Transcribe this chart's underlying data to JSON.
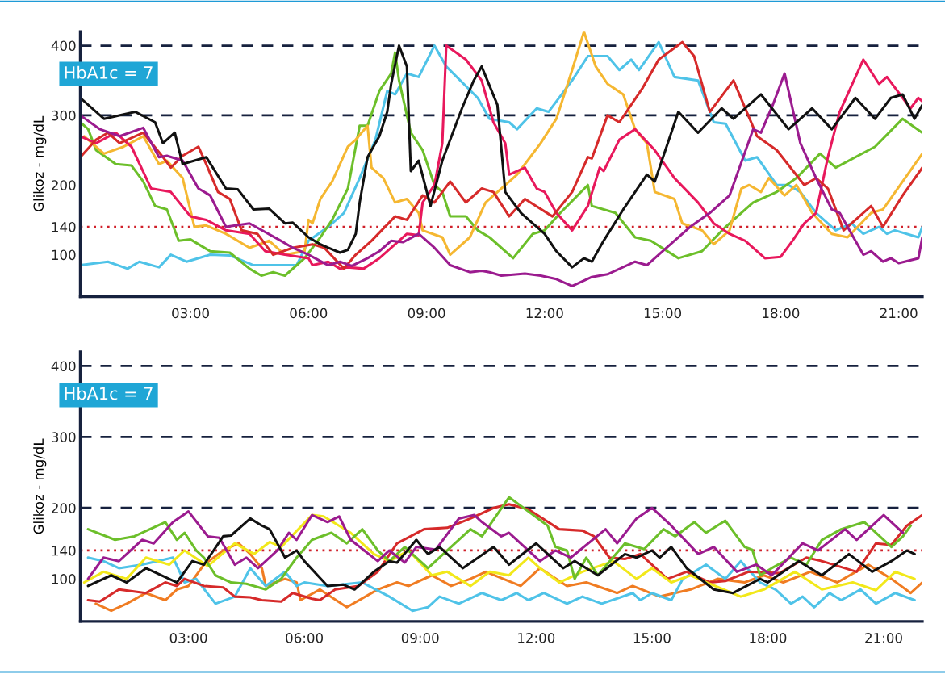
{
  "chart_data": [
    {
      "type": "line",
      "ylabel": "Glikoz - mg/dL",
      "annotations": [
        "HbA1c = 7"
      ],
      "xlim": [
        0.2,
        21.6
      ],
      "xticks": [
        {
          "value": 3,
          "label": "03:00"
        },
        {
          "value": 6,
          "label": "06:00"
        },
        {
          "value": 9,
          "label": "09:00"
        },
        {
          "value": 12,
          "label": "12:00"
        },
        {
          "value": 15,
          "label": "15:00"
        },
        {
          "value": 18,
          "label": "18:00"
        },
        {
          "value": 21,
          "label": "21:00"
        }
      ],
      "ylim": [
        40,
        420
      ],
      "yticks": [
        100,
        140,
        200,
        300,
        400
      ],
      "grid": false,
      "legend": false,
      "marker": "none",
      "line_style": "solid",
      "ref_lines": [
        {
          "axis": "y",
          "value": 400,
          "color": "#16213e",
          "line_style": "dashed"
        },
        {
          "axis": "y",
          "value": 300,
          "color": "#16213e",
          "line_style": "dashed"
        },
        {
          "axis": "y",
          "value": 140,
          "color": "#d0202a",
          "line_style": "dotted"
        }
      ],
      "series": [
        {
          "color": "#4fc3e8",
          "x": [
            0.2,
            0.9,
            1.4,
            1.7,
            2.2,
            2.5,
            2.9,
            3.5,
            4.0,
            4.6,
            5.7,
            6.0,
            6.5,
            6.9,
            7.3,
            7.7,
            8.0,
            8.2,
            8.5,
            8.8,
            9.2,
            9.5,
            10.3,
            10.6,
            11.1,
            11.3,
            11.8,
            12.1,
            12.7,
            13.1,
            13.6,
            13.9,
            14.2,
            14.4,
            14.9,
            15.3,
            15.9,
            16.3,
            16.6,
            17.1,
            17.4,
            17.9,
            18.2,
            18.5,
            18.9,
            19.4,
            19.8,
            20.1,
            20.5,
            20.7,
            20.9,
            21.5,
            21.6
          ],
          "values": [
            85,
            90,
            80,
            90,
            82,
            100,
            90,
            100,
            99,
            85,
            85,
            120,
            140,
            160,
            210,
            265,
            335,
            330,
            360,
            355,
            400,
            370,
            325,
            295,
            290,
            280,
            310,
            305,
            350,
            385,
            385,
            365,
            380,
            365,
            405,
            355,
            350,
            290,
            288,
            235,
            240,
            200,
            200,
            190,
            160,
            135,
            145,
            130,
            140,
            130,
            135,
            125,
            140
          ]
        },
        {
          "color": "#6cbf2a",
          "x": [
            0.2,
            0.4,
            0.6,
            1.1,
            1.5,
            1.8,
            2.1,
            2.4,
            2.7,
            3.0,
            3.5,
            4.0,
            4.5,
            4.8,
            5.1,
            5.4,
            5.9,
            6.3,
            6.6,
            7.0,
            7.3,
            7.5,
            7.8,
            8.1,
            8.2,
            8.3,
            8.6,
            8.9,
            9.2,
            9.4,
            9.6,
            10.0,
            10.3,
            10.6,
            11.2,
            11.7,
            12.0,
            12.4,
            13.1,
            13.2,
            13.8,
            14.3,
            14.7,
            15.4,
            16.0,
            16.6,
            17.3,
            17.9,
            18.4,
            19.0,
            19.4,
            20.4,
            21.1,
            21.6
          ],
          "values": [
            290,
            280,
            250,
            230,
            228,
            205,
            170,
            165,
            120,
            122,
            105,
            103,
            80,
            70,
            75,
            70,
            95,
            125,
            150,
            195,
            285,
            285,
            335,
            360,
            390,
            350,
            275,
            250,
            200,
            190,
            155,
            155,
            135,
            125,
            95,
            130,
            135,
            160,
            200,
            170,
            160,
            125,
            120,
            95,
            105,
            140,
            175,
            190,
            210,
            245,
            225,
            255,
            295,
            275
          ]
        },
        {
          "color": "#f5b731",
          "x": [
            0.3,
            0.8,
            1.3,
            1.8,
            2.2,
            2.4,
            2.8,
            3.1,
            3.4,
            3.9,
            4.5,
            5.0,
            5.4,
            5.9,
            6.0,
            6.1,
            6.3,
            6.6,
            7.0,
            7.2,
            7.5,
            7.6,
            7.9,
            8.2,
            8.5,
            8.8,
            8.9,
            9.4,
            9.6,
            10.1,
            10.5,
            11.3,
            11.9,
            12.3,
            12.7,
            13.0,
            13.3,
            13.6,
            14.0,
            14.3,
            14.6,
            14.8,
            15.3,
            15.5,
            16.0,
            16.3,
            16.7,
            17.0,
            17.2,
            17.5,
            17.7,
            18.1,
            18.4,
            18.8,
            19.3,
            19.7,
            20.3,
            20.6,
            21.1,
            21.6
          ],
          "values": [
            270,
            245,
            255,
            270,
            230,
            235,
            210,
            140,
            142,
            130,
            110,
            120,
            100,
            105,
            150,
            145,
            180,
            205,
            255,
            265,
            285,
            225,
            210,
            175,
            180,
            160,
            135,
            125,
            100,
            125,
            175,
            215,
            260,
            295,
            365,
            420,
            370,
            345,
            330,
            280,
            260,
            190,
            180,
            145,
            135,
            115,
            135,
            195,
            200,
            190,
            210,
            185,
            200,
            160,
            130,
            125,
            160,
            165,
            205,
            245
          ]
        },
        {
          "color": "#e8185c",
          "x": [
            0.2,
            0.6,
            1.1,
            1.5,
            2.0,
            2.5,
            3.0,
            3.4,
            3.9,
            4.5,
            4.9,
            5.4,
            6.0,
            6.1,
            6.5,
            6.8,
            7.0,
            7.4,
            7.8,
            8.2,
            8.5,
            8.8,
            8.9,
            9.2,
            9.4,
            9.5,
            10.0,
            10.4,
            10.7,
            11.0,
            11.1,
            11.5,
            11.8,
            12.0,
            12.3,
            12.7,
            13.1,
            13.4,
            13.5,
            13.9,
            14.3,
            14.8,
            15.3,
            15.9,
            16.3,
            16.7,
            17.1,
            17.6,
            18.0,
            18.3,
            18.6,
            18.9,
            19.2,
            19.5,
            20.1,
            20.5,
            20.7,
            21.3,
            21.5,
            21.6
          ],
          "values": [
            270,
            260,
            275,
            255,
            195,
            190,
            155,
            150,
            135,
            130,
            105,
            100,
            95,
            85,
            90,
            80,
            82,
            80,
            95,
            115,
            130,
            128,
            175,
            200,
            260,
            400,
            380,
            350,
            290,
            260,
            215,
            225,
            195,
            190,
            160,
            135,
            170,
            225,
            220,
            265,
            280,
            250,
            210,
            175,
            145,
            130,
            120,
            95,
            97,
            120,
            145,
            160,
            240,
            305,
            380,
            345,
            355,
            310,
            325,
            320
          ]
        },
        {
          "color": "#d62a2a",
          "x": [
            0.2,
            0.6,
            0.9,
            1.2,
            1.8,
            2.3,
            2.5,
            2.8,
            3.2,
            3.4,
            3.7,
            4.0,
            4.3,
            4.7,
            5.1,
            5.6,
            6.1,
            6.4,
            6.9,
            7.2,
            7.6,
            8.2,
            8.5,
            8.9,
            9.2,
            9.6,
            10.0,
            10.4,
            10.7,
            11.1,
            11.5,
            12.2,
            12.7,
            13.1,
            13.2,
            13.6,
            13.9,
            14.5,
            14.9,
            15.5,
            15.8,
            16.2,
            16.8,
            17.4,
            17.9,
            18.6,
            18.9,
            19.2,
            19.6,
            20.3,
            20.6,
            21.1,
            21.6
          ],
          "values": [
            240,
            265,
            275,
            260,
            275,
            240,
            225,
            242,
            255,
            230,
            190,
            180,
            135,
            130,
            100,
            110,
            115,
            110,
            80,
            100,
            120,
            155,
            150,
            185,
            175,
            205,
            175,
            195,
            190,
            155,
            180,
            155,
            190,
            240,
            238,
            300,
            290,
            340,
            380,
            405,
            385,
            305,
            350,
            270,
            250,
            200,
            210,
            195,
            135,
            170,
            140,
            185,
            225
          ]
        },
        {
          "color": "#9b1b8f",
          "x": [
            0.2,
            0.7,
            1.2,
            1.8,
            2.2,
            2.4,
            2.8,
            3.2,
            3.5,
            3.9,
            4.5,
            5.3,
            5.6,
            6.0,
            6.5,
            6.8,
            7.1,
            7.5,
            7.8,
            8.1,
            8.4,
            8.8,
            9.2,
            9.6,
            10.1,
            10.4,
            10.6,
            10.9,
            11.5,
            11.9,
            12.3,
            12.7,
            13.2,
            13.6,
            14.3,
            14.6,
            15.1,
            15.7,
            16.2,
            16.7,
            17.3,
            17.5,
            17.8,
            18.1,
            18.5,
            18.9,
            19.3,
            19.5,
            20.1,
            20.3,
            20.6,
            20.8,
            21.0,
            21.5,
            21.6
          ],
          "values": [
            300,
            280,
            270,
            282,
            240,
            242,
            235,
            195,
            185,
            140,
            145,
            120,
            110,
            100,
            85,
            90,
            84,
            95,
            105,
            120,
            118,
            130,
            110,
            85,
            75,
            77,
            75,
            70,
            73,
            70,
            65,
            55,
            68,
            72,
            90,
            85,
            110,
            140,
            160,
            185,
            280,
            275,
            315,
            360,
            260,
            210,
            165,
            160,
            100,
            105,
            90,
            95,
            88,
            95,
            125
          ]
        },
        {
          "color": "#111111",
          "x": [
            0.2,
            0.8,
            1.6,
            2.1,
            2.3,
            2.6,
            2.8,
            3.4,
            3.9,
            4.2,
            4.6,
            5.0,
            5.4,
            5.6,
            6.0,
            6.3,
            6.5,
            6.8,
            7.0,
            7.2,
            7.3,
            7.5,
            7.8,
            8.0,
            8.1,
            8.3,
            8.5,
            8.6,
            8.8,
            9.1,
            9.4,
            9.9,
            10.2,
            10.4,
            10.8,
            11.0,
            11.4,
            12.0,
            12.3,
            12.7,
            13.0,
            13.2,
            13.5,
            14.0,
            14.6,
            14.8,
            15.4,
            15.9,
            16.5,
            16.8,
            17.5,
            18.2,
            18.8,
            19.3,
            19.9,
            20.4,
            20.8,
            21.1,
            21.4,
            21.6
          ],
          "values": [
            325,
            295,
            305,
            290,
            260,
            275,
            230,
            240,
            195,
            194,
            165,
            166,
            145,
            146,
            125,
            115,
            110,
            103,
            107,
            130,
            175,
            240,
            270,
            305,
            345,
            400,
            370,
            220,
            235,
            170,
            235,
            310,
            350,
            370,
            315,
            190,
            160,
            130,
            105,
            82,
            95,
            90,
            120,
            165,
            215,
            205,
            305,
            275,
            310,
            295,
            330,
            280,
            310,
            280,
            325,
            295,
            325,
            330,
            295,
            315
          ]
        }
      ]
    },
    {
      "type": "line",
      "ylabel": "Glikoz - mg/dL",
      "annotations": [
        "HbA1c = 7"
      ],
      "xlim": [
        0.2,
        22.0
      ],
      "xticks": [
        {
          "value": 3,
          "label": "03:00"
        },
        {
          "value": 6,
          "label": "06:00"
        },
        {
          "value": 9,
          "label": "09:00"
        },
        {
          "value": 12,
          "label": "12:00"
        },
        {
          "value": 15,
          "label": "15:00"
        },
        {
          "value": 18,
          "label": "18:00"
        },
        {
          "value": 21,
          "label": "21:00"
        }
      ],
      "ylim": [
        40,
        420
      ],
      "yticks": [
        100,
        140,
        200,
        300,
        400
      ],
      "grid": false,
      "legend": false,
      "marker": "none",
      "line_style": "solid",
      "ref_lines": [
        {
          "axis": "y",
          "value": 400,
          "color": "#16213e",
          "line_style": "dashed"
        },
        {
          "axis": "y",
          "value": 300,
          "color": "#16213e",
          "line_style": "dashed"
        },
        {
          "axis": "y",
          "value": 200,
          "color": "#16213e",
          "line_style": "dashed"
        },
        {
          "axis": "y",
          "value": 140,
          "color": "#d0202a",
          "line_style": "dotted"
        }
      ],
      "series": [
        {
          "color": "#f07c22",
          "x": [
            0.6,
            1.0,
            1.4,
            1.9,
            2.4,
            2.7,
            3.0,
            3.4,
            3.9,
            4.3,
            4.6,
            4.9,
            5.0,
            5.5,
            5.8,
            5.9,
            6.4,
            7.1,
            7.9,
            8.4,
            8.7,
            9.3,
            9.8,
            10.3,
            10.7,
            11.6,
            12.1,
            12.8,
            13.3,
            14.1,
            14.5,
            15.2,
            16.0,
            16.7,
            17.4,
            17.9,
            18.4,
            19.1,
            19.8,
            20.6,
            21.2,
            21.7,
            22.0
          ],
          "values": [
            65,
            55,
            65,
            80,
            70,
            85,
            90,
            120,
            140,
            150,
            135,
            115,
            90,
            100,
            95,
            70,
            85,
            60,
            85,
            95,
            90,
            105,
            90,
            100,
            110,
            90,
            115,
            90,
            95,
            80,
            90,
            75,
            85,
            100,
            95,
            105,
            95,
            110,
            95,
            120,
            100,
            80,
            95
          ]
        },
        {
          "color": "#4fc3e8",
          "x": [
            0.4,
            0.8,
            1.2,
            1.8,
            2.6,
            2.9,
            3.2,
            3.7,
            4.2,
            4.6,
            5.0,
            5.5,
            5.8,
            6.0,
            6.6,
            7.5,
            8.2,
            8.8,
            9.2,
            9.5,
            10.0,
            10.6,
            11.1,
            11.5,
            11.8,
            12.2,
            12.8,
            13.2,
            13.7,
            14.5,
            14.7,
            15.0,
            15.5,
            15.8,
            16.4,
            16.9,
            17.3,
            17.8,
            18.2,
            18.6,
            18.9,
            19.2,
            19.6,
            19.9,
            20.4,
            20.8,
            21.3,
            21.8
          ],
          "values": [
            130,
            125,
            115,
            120,
            130,
            95,
            100,
            65,
            75,
            115,
            90,
            110,
            90,
            95,
            90,
            95,
            75,
            55,
            60,
            75,
            65,
            80,
            70,
            80,
            70,
            80,
            65,
            75,
            65,
            80,
            70,
            80,
            70,
            100,
            120,
            100,
            125,
            95,
            85,
            65,
            75,
            60,
            80,
            70,
            85,
            65,
            80,
            70
          ]
        },
        {
          "color": "#d62a2a",
          "x": [
            0.4,
            0.7,
            1.2,
            1.9,
            2.4,
            2.7,
            2.9,
            3.4,
            3.9,
            4.2,
            4.6,
            4.9,
            5.4,
            5.7,
            6.2,
            6.4,
            6.8,
            7.4,
            7.9,
            8.4,
            9.1,
            9.7,
            10.3,
            10.9,
            11.3,
            11.8,
            12.6,
            13.2,
            13.5,
            13.9,
            14.3,
            14.7,
            15.4,
            15.9,
            16.5,
            16.9,
            17.5,
            18.3,
            19.0,
            19.4,
            20.3,
            20.8,
            21.2,
            21.6,
            22.0
          ],
          "values": [
            70,
            68,
            85,
            80,
            95,
            90,
            100,
            90,
            88,
            75,
            74,
            70,
            68,
            80,
            72,
            70,
            85,
            90,
            110,
            150,
            170,
            172,
            185,
            200,
            205,
            198,
            170,
            168,
            160,
            130,
            128,
            135,
            100,
            110,
            95,
            97,
            110,
            108,
            130,
            125,
            110,
            150,
            148,
            175,
            190
          ]
        },
        {
          "color": "#f2e81a",
          "x": [
            0.3,
            0.8,
            1.4,
            1.9,
            2.5,
            2.9,
            3.5,
            4.2,
            4.7,
            5.1,
            5.4,
            6.2,
            6.5,
            7.2,
            7.8,
            8.2,
            8.7,
            9.3,
            9.7,
            10.3,
            10.8,
            11.3,
            11.8,
            12.1,
            12.6,
            13.2,
            14.0,
            14.6,
            15.0,
            15.5,
            16.0,
            16.5,
            17.3,
            17.9,
            18.7,
            19.4,
            20.2,
            20.8,
            21.3,
            21.8
          ],
          "values": [
            95,
            110,
            100,
            130,
            120,
            140,
            118,
            150,
            135,
            152,
            145,
            190,
            188,
            165,
            135,
            125,
            140,
            105,
            110,
            90,
            110,
            105,
            130,
            115,
            95,
            110,
            125,
            100,
            115,
            95,
            105,
            93,
            75,
            85,
            110,
            85,
            95,
            84,
            110,
            100
          ]
        },
        {
          "color": "#6cbf2a",
          "x": [
            0.4,
            1.1,
            1.6,
            2.4,
            2.7,
            2.9,
            3.2,
            3.4,
            3.7,
            4.1,
            4.5,
            5.0,
            5.4,
            5.8,
            6.2,
            6.7,
            7.1,
            7.5,
            7.9,
            8.2,
            8.6,
            9.2,
            9.7,
            10.3,
            10.6,
            11.3,
            11.8,
            12.3,
            12.5,
            12.8,
            13.0,
            13.3,
            13.6,
            14.3,
            14.8,
            15.3,
            15.6,
            16.1,
            16.4,
            16.9,
            17.4,
            17.6,
            17.8,
            18.1,
            18.6,
            19.0,
            19.4,
            19.9,
            20.5,
            21.2,
            21.5,
            21.7
          ],
          "values": [
            170,
            155,
            160,
            180,
            155,
            165,
            140,
            130,
            105,
            95,
            93,
            85,
            100,
            130,
            155,
            165,
            150,
            170,
            140,
            125,
            145,
            115,
            140,
            170,
            160,
            215,
            195,
            175,
            145,
            140,
            100,
            130,
            105,
            150,
            142,
            170,
            160,
            180,
            165,
            182,
            145,
            141,
            105,
            115,
            130,
            120,
            155,
            170,
            180,
            145,
            160,
            175
          ]
        },
        {
          "color": "#9b1b8f",
          "x": [
            0.4,
            0.8,
            1.2,
            1.8,
            2.1,
            2.6,
            3.0,
            3.5,
            3.8,
            4.2,
            4.5,
            4.8,
            5.3,
            5.6,
            5.8,
            6.2,
            6.6,
            6.9,
            7.2,
            7.9,
            8.2,
            8.6,
            8.9,
            9.4,
            10.0,
            10.4,
            10.6,
            11.1,
            11.3,
            12.1,
            12.5,
            12.9,
            13.8,
            14.1,
            14.6,
            15.0,
            15.5,
            16.2,
            16.6,
            17.2,
            17.7,
            18.1,
            18.9,
            19.3,
            20.0,
            20.3,
            21.0,
            21.5
          ],
          "values": [
            100,
            130,
            125,
            155,
            150,
            180,
            195,
            160,
            158,
            120,
            130,
            115,
            140,
            165,
            155,
            190,
            180,
            188,
            155,
            125,
            140,
            123,
            145,
            141,
            185,
            190,
            180,
            160,
            165,
            125,
            140,
            130,
            170,
            150,
            185,
            200,
            175,
            135,
            145,
            110,
            120,
            105,
            150,
            140,
            170,
            155,
            190,
            165
          ]
        },
        {
          "color": "#111111",
          "x": [
            0.4,
            1.0,
            1.4,
            1.9,
            2.7,
            3.1,
            3.4,
            3.9,
            4.1,
            4.6,
            4.9,
            5.1,
            5.5,
            5.8,
            6.0,
            6.6,
            7.0,
            7.3,
            7.8,
            8.2,
            8.4,
            8.9,
            9.2,
            9.5,
            10.1,
            10.9,
            11.3,
            12.0,
            12.7,
            13.0,
            13.6,
            14.3,
            14.6,
            15.0,
            15.2,
            15.5,
            15.9,
            16.6,
            17.1,
            17.8,
            18.0,
            18.8,
            19.4,
            20.1,
            20.7,
            21.2,
            21.6,
            21.8
          ],
          "values": [
            90,
            105,
            95,
            115,
            95,
            125,
            120,
            160,
            161,
            185,
            175,
            170,
            130,
            140,
            125,
            90,
            92,
            85,
            110,
            125,
            123,
            155,
            135,
            145,
            115,
            145,
            120,
            150,
            115,
            125,
            105,
            135,
            130,
            140,
            130,
            145,
            115,
            85,
            80,
            100,
            95,
            125,
            105,
            135,
            110,
            125,
            140,
            135
          ]
        }
      ]
    }
  ]
}
